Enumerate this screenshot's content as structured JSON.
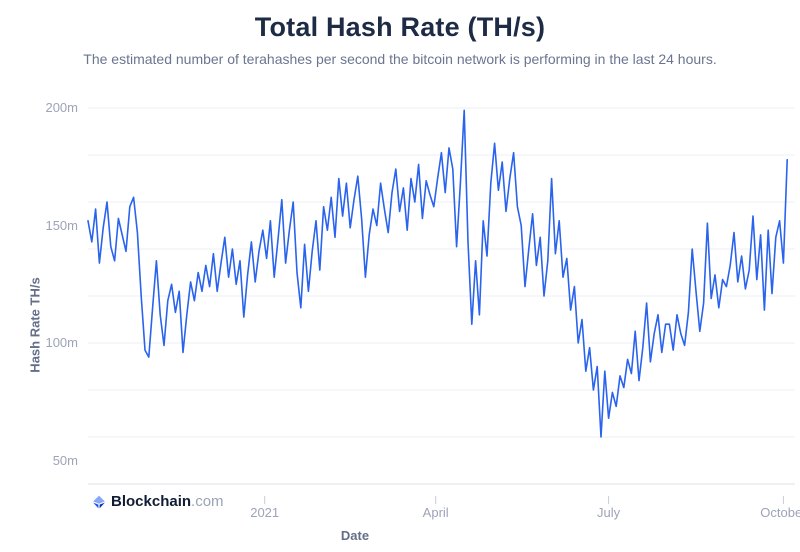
{
  "header": {
    "title": "Total Hash Rate (TH/s)",
    "subtitle": "The estimated number of terahashes per second the bitcoin network is performing in the last 24 hours."
  },
  "logo": {
    "brand": "Blockchain",
    "tld": ".com"
  },
  "colors": {
    "line": "#2a63ed",
    "title": "#1d2b45",
    "subtitle": "#6b7590",
    "axis_title": "#646e88",
    "tick_label": "#9ca4b8",
    "gridline": "#edeff4",
    "axis_line": "#dde2ea",
    "tick_mark": "#c6ccda",
    "logo_blue": "#1652f0"
  },
  "chart_data": {
    "type": "line",
    "title": "Total Hash Rate (TH/s)",
    "subtitle": "The estimated number of terahashes per second the bitcoin network is performing in the last 24 hours.",
    "xlabel": "Date",
    "ylabel": "Hash Rate TH/s",
    "x_range": [
      "2020-09-30",
      "2021-10-03"
    ],
    "sample_interval_days": 2,
    "ylim": [
      40,
      200
    ],
    "grid_step": 20,
    "grid": "horizontal",
    "legend_position": "none",
    "line_color": "#2a63ed",
    "ytick_values": [
      200,
      150,
      100,
      50
    ],
    "ytick_labels": [
      "200m",
      "150m",
      "100m",
      "50m"
    ],
    "xticks": [
      {
        "label": "2021",
        "day": 93
      },
      {
        "label": "April",
        "day": 183
      },
      {
        "label": "July",
        "day": 274
      },
      {
        "label": "October",
        "day": 366
      }
    ],
    "series": [
      {
        "name": "Total Hash Rate (TH/s)",
        "unit": "m TH/s",
        "values": [
          152,
          143,
          157,
          134,
          149,
          160,
          141,
          135,
          153,
          146,
          139,
          158,
          162,
          147,
          120,
          97,
          94,
          115,
          135,
          112,
          99,
          118,
          125,
          113,
          122,
          96,
          112,
          126,
          118,
          130,
          122,
          133,
          124,
          138,
          122,
          134,
          145,
          128,
          140,
          125,
          135,
          111,
          129,
          143,
          126,
          139,
          148,
          136,
          152,
          128,
          144,
          161,
          134,
          148,
          160,
          130,
          115,
          142,
          122,
          139,
          152,
          131,
          158,
          148,
          162,
          145,
          170,
          154,
          168,
          149,
          161,
          171,
          153,
          128,
          146,
          157,
          150,
          168,
          157,
          147,
          164,
          174,
          156,
          166,
          148,
          170,
          160,
          176,
          153,
          169,
          163,
          158,
          170,
          181,
          164,
          183,
          174,
          141,
          168,
          199,
          143,
          108,
          135,
          112,
          152,
          137,
          168,
          185,
          165,
          177,
          156,
          170,
          181,
          158,
          150,
          124,
          140,
          155,
          133,
          145,
          120,
          135,
          170,
          138,
          152,
          128,
          136,
          114,
          124,
          100,
          110,
          88,
          98,
          80,
          90,
          60,
          88,
          68,
          79,
          73,
          86,
          81,
          93,
          87,
          105,
          84,
          98,
          117,
          92,
          104,
          112,
          96,
          108,
          108,
          97,
          112,
          104,
          99,
          113,
          140,
          122,
          105,
          117,
          151,
          119,
          129,
          115,
          127,
          124,
          133,
          147,
          126,
          137,
          123,
          131,
          154,
          127,
          146,
          114,
          148,
          121,
          145,
          152,
          134,
          178
        ]
      }
    ]
  }
}
